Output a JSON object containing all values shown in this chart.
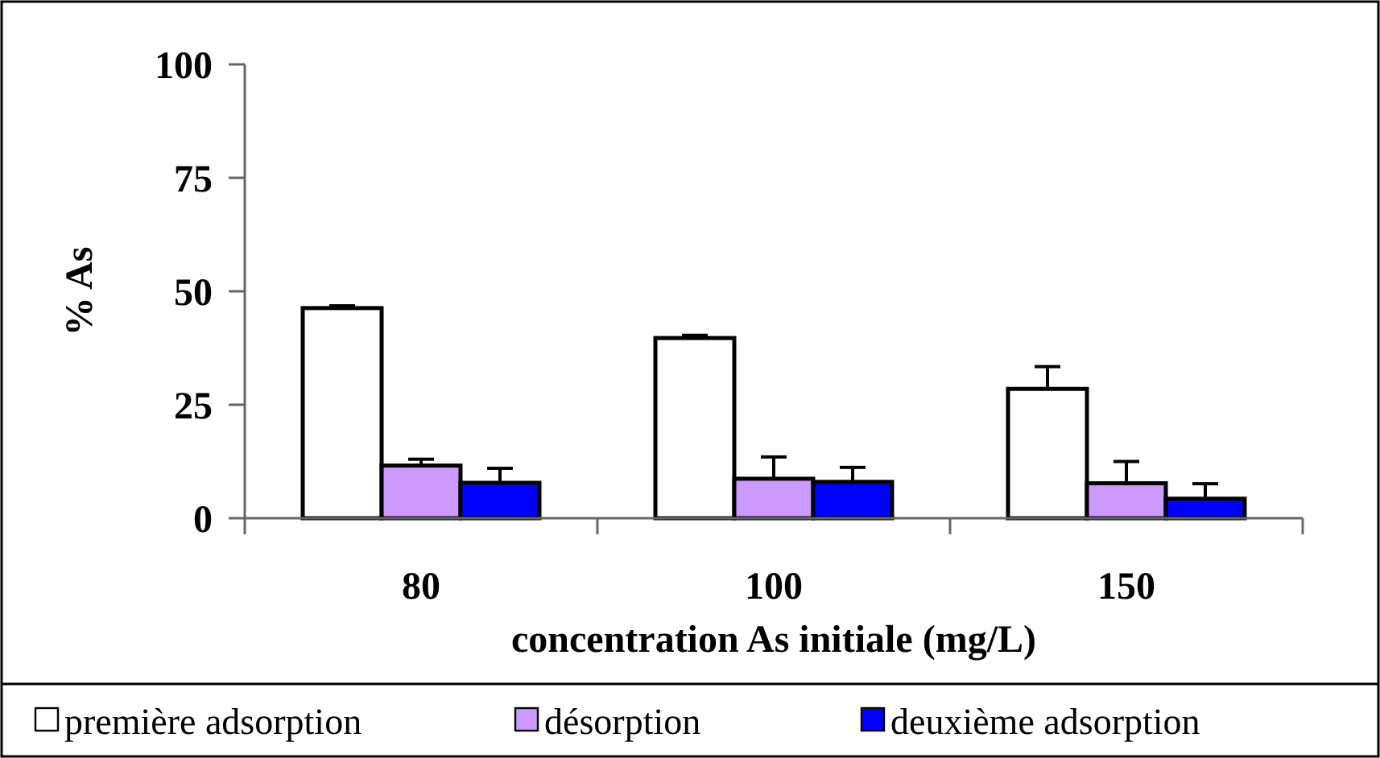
{
  "chart_data": {
    "type": "bar",
    "categories": [
      "80",
      "100",
      "150"
    ],
    "series": [
      {
        "name": "première adsorption",
        "color": "#ffffff",
        "values": [
          46.3,
          39.7,
          28.5
        ],
        "errors": [
          [
            46.3,
            46.8
          ],
          [
            39.7,
            40.3
          ],
          [
            28.5,
            33.4
          ]
        ]
      },
      {
        "name": "désorption",
        "color": "#cc99ff",
        "values": [
          11.6,
          8.7,
          7.7
        ],
        "errors": [
          [
            11.6,
            13.0
          ],
          [
            8.7,
            13.5
          ],
          [
            7.7,
            12.5
          ]
        ]
      },
      {
        "name": "deuxième adsorption",
        "color": "#0000ff",
        "values": [
          7.8,
          8.0,
          4.3
        ],
        "errors": [
          [
            7.8,
            11.0
          ],
          [
            8.0,
            11.2
          ],
          [
            4.3,
            7.6
          ]
        ]
      }
    ],
    "xlabel": "concentration As initiale (mg/L)",
    "ylabel": "% As",
    "ylim": [
      0,
      100
    ],
    "yticks": [
      0,
      25,
      50,
      75,
      100
    ],
    "grid": false,
    "legend": "bottom"
  }
}
